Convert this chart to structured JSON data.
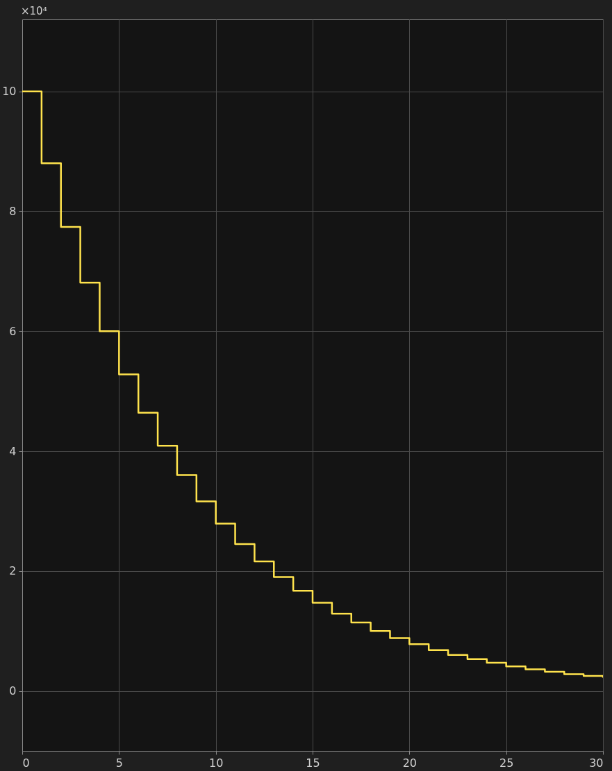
{
  "chart_data": {
    "type": "step",
    "x": [
      0,
      1,
      2,
      3,
      4,
      5,
      6,
      7,
      8,
      9,
      10,
      11,
      12,
      13,
      14,
      15,
      16,
      17,
      18,
      19,
      20,
      21,
      22,
      23,
      24,
      25,
      26,
      27,
      28,
      29,
      30
    ],
    "series": [
      {
        "color": "#ffe34d",
        "values": [
          10,
          8.8,
          7.74,
          6.81,
          6.0,
          5.28,
          4.64,
          4.09,
          3.6,
          3.16,
          2.79,
          2.45,
          2.16,
          1.9,
          1.67,
          1.47,
          1.29,
          1.14,
          1.0,
          0.88,
          0.78,
          0.68,
          0.6,
          0.53,
          0.47,
          0.41,
          0.36,
          0.32,
          0.28,
          0.25,
          0.22
        ]
      }
    ],
    "xlim": [
      0,
      30
    ],
    "xticks": [
      0,
      5,
      10,
      15,
      20,
      25,
      30
    ],
    "ylim": [
      -1,
      11.2
    ],
    "yticks": [
      0,
      2,
      4,
      6,
      8,
      10
    ],
    "annotations": [
      "×10⁴"
    ],
    "grid": true,
    "marker": "none",
    "line_style": "solid"
  }
}
